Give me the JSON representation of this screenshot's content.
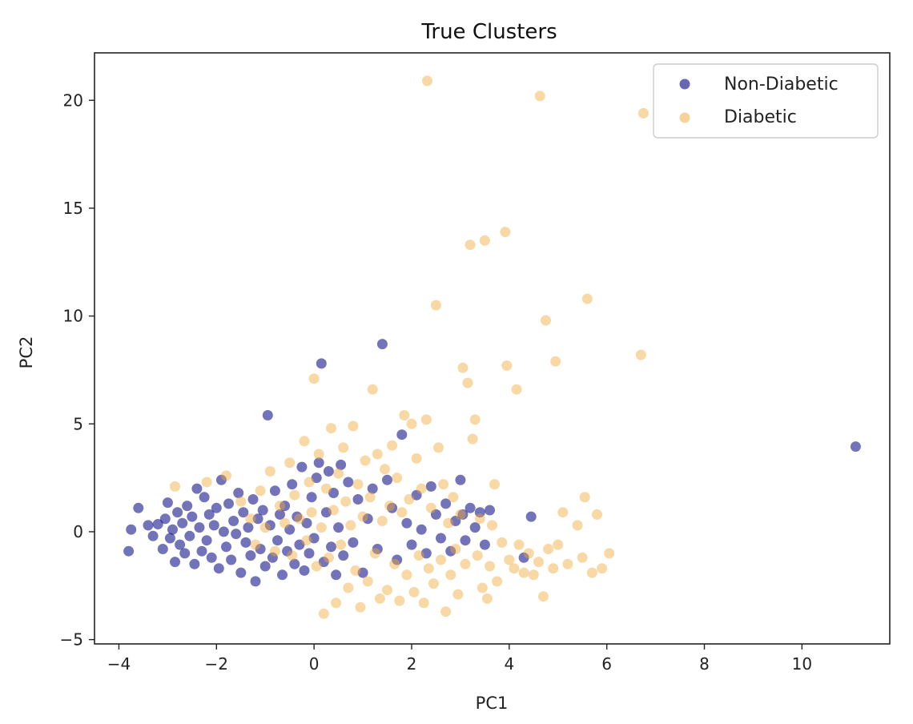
{
  "chart_data": {
    "type": "scatter",
    "title": "True Clusters",
    "xlabel": "PC1",
    "ylabel": "PC2",
    "xlim": [
      -4.5,
      11.8
    ],
    "ylim": [
      -5.2,
      22.2
    ],
    "xticks": [
      -4,
      -2,
      0,
      2,
      4,
      6,
      8,
      10
    ],
    "yticks": [
      -5,
      0,
      5,
      10,
      15,
      20
    ],
    "xtick_labels": [
      "−4",
      "−2",
      "0",
      "2",
      "4",
      "6",
      "8",
      "10"
    ],
    "ytick_labels": [
      "−5",
      "0",
      "5",
      "10",
      "15",
      "20"
    ],
    "grid": false,
    "legend_position": "top-right",
    "series": [
      {
        "name": "Non-Diabetic",
        "color": "#000080",
        "points": [
          [
            -3.8,
            -0.9
          ],
          [
            -3.75,
            0.1
          ],
          [
            -3.6,
            1.1
          ],
          [
            -3.4,
            0.3
          ],
          [
            -3.3,
            -0.2
          ],
          [
            -3.2,
            0.35
          ],
          [
            -3.1,
            -0.8
          ],
          [
            -3.05,
            0.6
          ],
          [
            -3.0,
            1.35
          ],
          [
            -2.95,
            -0.3
          ],
          [
            -2.9,
            0.1
          ],
          [
            -2.85,
            -1.4
          ],
          [
            -2.8,
            0.9
          ],
          [
            -2.75,
            -0.6
          ],
          [
            -2.7,
            0.4
          ],
          [
            -2.65,
            -1.0
          ],
          [
            -2.6,
            1.2
          ],
          [
            -2.55,
            -0.2
          ],
          [
            -2.5,
            0.7
          ],
          [
            -2.45,
            -1.5
          ],
          [
            -2.4,
            2.0
          ],
          [
            -2.35,
            0.2
          ],
          [
            -2.3,
            -0.9
          ],
          [
            -2.25,
            1.6
          ],
          [
            -2.2,
            -0.4
          ],
          [
            -2.15,
            0.8
          ],
          [
            -2.1,
            -1.2
          ],
          [
            -2.05,
            0.3
          ],
          [
            -2.0,
            1.1
          ],
          [
            -1.95,
            -1.7
          ],
          [
            -1.9,
            2.4
          ],
          [
            -1.85,
            0.0
          ],
          [
            -1.8,
            -0.7
          ],
          [
            -1.75,
            1.3
          ],
          [
            -1.7,
            -1.3
          ],
          [
            -1.65,
            0.5
          ],
          [
            -1.6,
            -0.1
          ],
          [
            -1.55,
            1.8
          ],
          [
            -1.5,
            -1.9
          ],
          [
            -1.45,
            0.9
          ],
          [
            -1.4,
            -0.5
          ],
          [
            -1.35,
            0.2
          ],
          [
            -1.3,
            -1.1
          ],
          [
            -1.25,
            1.5
          ],
          [
            -1.2,
            -2.3
          ],
          [
            -1.15,
            0.6
          ],
          [
            -1.1,
            -0.8
          ],
          [
            -1.05,
            1.0
          ],
          [
            -1.0,
            -1.6
          ],
          [
            -0.95,
            5.4
          ],
          [
            -0.9,
            0.3
          ],
          [
            -0.85,
            -1.2
          ],
          [
            -0.8,
            1.9
          ],
          [
            -0.75,
            -0.4
          ],
          [
            -0.7,
            0.8
          ],
          [
            -0.65,
            -2.0
          ],
          [
            -0.6,
            1.2
          ],
          [
            -0.55,
            -0.9
          ],
          [
            -0.5,
            0.1
          ],
          [
            -0.45,
            2.2
          ],
          [
            -0.4,
            -1.5
          ],
          [
            -0.35,
            0.7
          ],
          [
            -0.3,
            -0.6
          ],
          [
            -0.25,
            3.0
          ],
          [
            -0.2,
            -1.8
          ],
          [
            -0.15,
            0.4
          ],
          [
            -0.1,
            -1.0
          ],
          [
            -0.05,
            1.6
          ],
          [
            0.0,
            -0.3
          ],
          [
            0.05,
            2.5
          ],
          [
            0.1,
            3.2
          ],
          [
            0.15,
            7.8
          ],
          [
            0.2,
            -1.4
          ],
          [
            0.25,
            0.9
          ],
          [
            0.3,
            2.8
          ],
          [
            0.35,
            -0.7
          ],
          [
            0.4,
            1.8
          ],
          [
            0.45,
            -2.0
          ],
          [
            0.5,
            0.2
          ],
          [
            0.55,
            3.1
          ],
          [
            0.6,
            -1.1
          ],
          [
            0.7,
            2.3
          ],
          [
            0.8,
            -0.5
          ],
          [
            0.9,
            1.5
          ],
          [
            1.0,
            -1.9
          ],
          [
            1.1,
            0.6
          ],
          [
            1.2,
            2.0
          ],
          [
            1.3,
            -0.8
          ],
          [
            1.4,
            8.7
          ],
          [
            1.5,
            2.4
          ],
          [
            1.6,
            1.1
          ],
          [
            1.7,
            -1.3
          ],
          [
            1.8,
            4.5
          ],
          [
            1.9,
            0.4
          ],
          [
            2.0,
            -0.6
          ],
          [
            2.1,
            1.7
          ],
          [
            2.2,
            0.1
          ],
          [
            2.3,
            -1.0
          ],
          [
            2.4,
            2.1
          ],
          [
            2.5,
            0.8
          ],
          [
            2.6,
            -0.3
          ],
          [
            2.7,
            1.3
          ],
          [
            2.8,
            -0.9
          ],
          [
            2.9,
            0.5
          ],
          [
            3.0,
            2.4
          ],
          [
            3.05,
            0.8
          ],
          [
            3.1,
            -0.4
          ],
          [
            3.2,
            1.1
          ],
          [
            3.3,
            0.2
          ],
          [
            3.4,
            0.9
          ],
          [
            3.5,
            -0.6
          ],
          [
            3.6,
            1.0
          ],
          [
            4.3,
            -1.2
          ],
          [
            4.45,
            0.7
          ],
          [
            11.1,
            3.95
          ]
        ]
      },
      {
        "name": "Diabetic",
        "color": "#f0a838",
        "points": [
          [
            -2.85,
            2.1
          ],
          [
            -2.2,
            2.3
          ],
          [
            -1.8,
            2.6
          ],
          [
            -1.5,
            1.4
          ],
          [
            -1.3,
            0.6
          ],
          [
            -1.2,
            -0.6
          ],
          [
            -1.1,
            1.9
          ],
          [
            -1.0,
            0.2
          ],
          [
            -0.9,
            2.8
          ],
          [
            -0.8,
            -0.9
          ],
          [
            -0.7,
            1.2
          ],
          [
            -0.6,
            0.4
          ],
          [
            -0.5,
            3.2
          ],
          [
            -0.45,
            -1.1
          ],
          [
            -0.4,
            1.7
          ],
          [
            -0.3,
            0.6
          ],
          [
            -0.2,
            4.2
          ],
          [
            -0.15,
            -0.4
          ],
          [
            -0.1,
            2.3
          ],
          [
            -0.05,
            0.9
          ],
          [
            0.0,
            7.1
          ],
          [
            0.05,
            -1.6
          ],
          [
            0.1,
            3.6
          ],
          [
            0.15,
            0.2
          ],
          [
            0.2,
            -3.8
          ],
          [
            0.25,
            2.0
          ],
          [
            0.3,
            -1.2
          ],
          [
            0.35,
            4.8
          ],
          [
            0.4,
            1.0
          ],
          [
            0.45,
            -3.3
          ],
          [
            0.5,
            2.7
          ],
          [
            0.55,
            -0.6
          ],
          [
            0.6,
            3.9
          ],
          [
            0.65,
            1.4
          ],
          [
            0.7,
            -2.6
          ],
          [
            0.75,
            0.3
          ],
          [
            0.8,
            4.9
          ],
          [
            0.85,
            -1.8
          ],
          [
            0.9,
            2.2
          ],
          [
            0.95,
            -3.5
          ],
          [
            1.0,
            0.7
          ],
          [
            1.05,
            3.3
          ],
          [
            1.1,
            -2.3
          ],
          [
            1.15,
            1.6
          ],
          [
            1.2,
            6.6
          ],
          [
            1.25,
            -1.0
          ],
          [
            1.3,
            3.6
          ],
          [
            1.35,
            -3.1
          ],
          [
            1.4,
            0.5
          ],
          [
            1.45,
            2.9
          ],
          [
            1.5,
            -2.7
          ],
          [
            1.55,
            1.2
          ],
          [
            1.6,
            4.0
          ],
          [
            1.65,
            -1.5
          ],
          [
            1.7,
            2.5
          ],
          [
            1.75,
            -3.2
          ],
          [
            1.8,
            0.9
          ],
          [
            1.85,
            5.4
          ],
          [
            1.9,
            -2.0
          ],
          [
            1.95,
            1.5
          ],
          [
            2.0,
            5.0
          ],
          [
            2.05,
            -2.8
          ],
          [
            2.1,
            3.4
          ],
          [
            2.15,
            -1.1
          ],
          [
            2.2,
            2.0
          ],
          [
            2.25,
            -3.3
          ],
          [
            2.3,
            5.2
          ],
          [
            2.32,
            20.9
          ],
          [
            2.35,
            -1.7
          ],
          [
            2.4,
            1.1
          ],
          [
            2.45,
            -2.4
          ],
          [
            2.5,
            10.5
          ],
          [
            2.55,
            3.9
          ],
          [
            2.6,
            -1.3
          ],
          [
            2.65,
            2.2
          ],
          [
            2.7,
            -3.7
          ],
          [
            2.75,
            0.4
          ],
          [
            2.8,
            -2.0
          ],
          [
            2.85,
            1.6
          ],
          [
            2.9,
            -0.8
          ],
          [
            2.95,
            -2.9
          ],
          [
            3.0,
            0.8
          ],
          [
            3.05,
            7.6
          ],
          [
            3.1,
            -1.5
          ],
          [
            3.15,
            6.9
          ],
          [
            3.2,
            13.3
          ],
          [
            3.25,
            4.3
          ],
          [
            3.3,
            5.2
          ],
          [
            3.35,
            -1.1
          ],
          [
            3.4,
            0.6
          ],
          [
            3.45,
            -2.6
          ],
          [
            3.5,
            13.5
          ],
          [
            3.55,
            -3.1
          ],
          [
            3.6,
            -1.6
          ],
          [
            3.65,
            0.3
          ],
          [
            3.7,
            2.2
          ],
          [
            3.75,
            -2.3
          ],
          [
            3.85,
            -0.5
          ],
          [
            3.92,
            13.9
          ],
          [
            3.95,
            7.7
          ],
          [
            4.0,
            -1.3
          ],
          [
            4.1,
            -1.7
          ],
          [
            4.15,
            6.6
          ],
          [
            4.2,
            -0.6
          ],
          [
            4.3,
            -1.9
          ],
          [
            4.4,
            -1.0
          ],
          [
            4.5,
            -2.0
          ],
          [
            4.6,
            -1.4
          ],
          [
            4.63,
            20.2
          ],
          [
            4.7,
            -3.0
          ],
          [
            4.75,
            9.8
          ],
          [
            4.8,
            -0.8
          ],
          [
            4.9,
            -1.7
          ],
          [
            4.95,
            7.9
          ],
          [
            5.0,
            -0.6
          ],
          [
            5.1,
            0.9
          ],
          [
            5.2,
            -1.5
          ],
          [
            5.4,
            0.3
          ],
          [
            5.5,
            -1.2
          ],
          [
            5.55,
            1.6
          ],
          [
            5.6,
            10.8
          ],
          [
            5.7,
            -1.9
          ],
          [
            5.8,
            0.8
          ],
          [
            5.9,
            -1.7
          ],
          [
            6.05,
            -1.0
          ],
          [
            6.7,
            8.2
          ],
          [
            6.75,
            19.4
          ]
        ]
      }
    ]
  }
}
